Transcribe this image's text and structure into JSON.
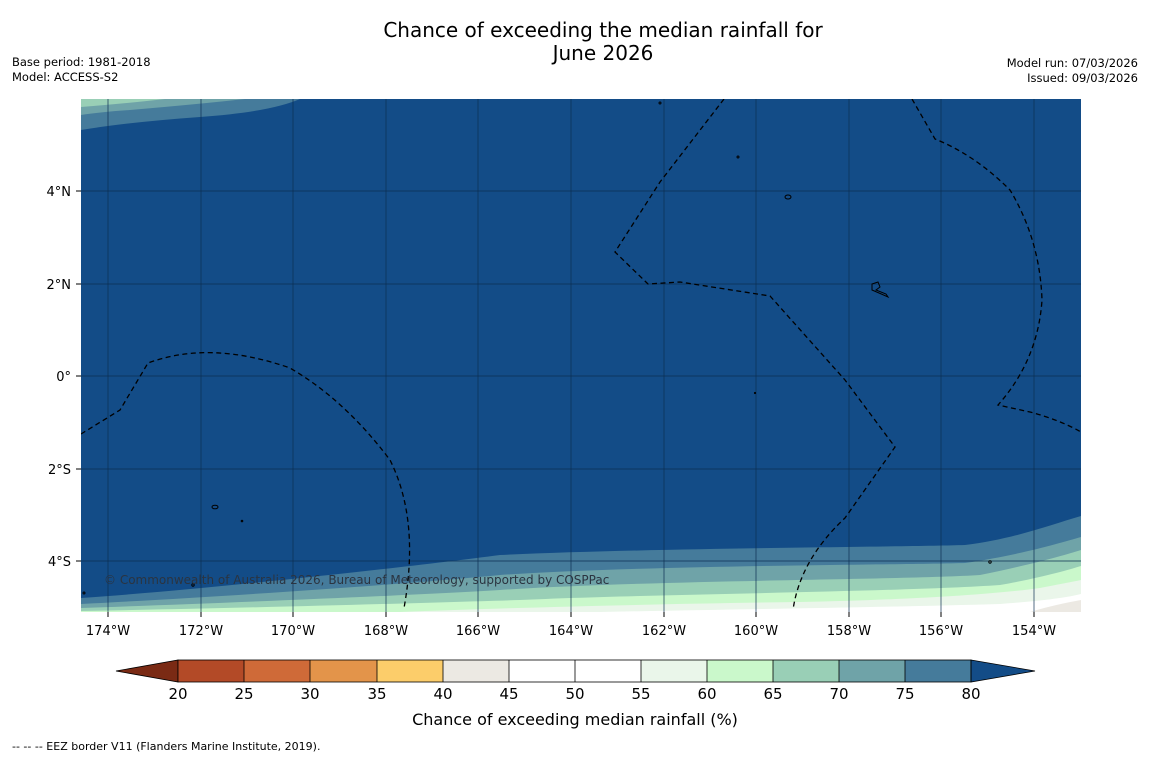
{
  "title_line1": "Chance of exceeding the median rainfall for",
  "title_line2": "June 2026",
  "base_period": "Base period: 1981-2018",
  "model": "Model: ACCESS-S2",
  "model_run": "Model run: 07/03/2026",
  "issued": "Issued: 09/03/2026",
  "copyright": "© Commonwealth of Australia 2026, Bureau of Meteorology, supported by COSPPac",
  "footer_note": "--  --  -- EEZ border V11 (Flanders Marine Institute, 2019).",
  "colorbar": {
    "label": "Chance of exceeding median rainfall (%)",
    "ticks": [
      "20",
      "25",
      "30",
      "35",
      "40",
      "45",
      "50",
      "55",
      "60",
      "65",
      "70",
      "75",
      "80"
    ],
    "colors": [
      "#7a2a14",
      "#b34a27",
      "#cf6a38",
      "#e3944a",
      "#fccd6a",
      "#ece9e3",
      "#ffffff",
      "#ffffff",
      "#eaf6ea",
      "#caf8cb",
      "#99cfb6",
      "#6fa3a8",
      "#457b9b",
      "#134c87"
    ]
  },
  "map": {
    "x_ticks": [
      "174°W",
      "172°W",
      "170°W",
      "168°W",
      "166°W",
      "164°W",
      "162°W",
      "160°W",
      "158°W",
      "156°W",
      "154°W"
    ],
    "y_ticks": [
      "4°N",
      "2°N",
      "0°",
      "2°S",
      "4°S"
    ],
    "background_color": "#134c87"
  }
}
